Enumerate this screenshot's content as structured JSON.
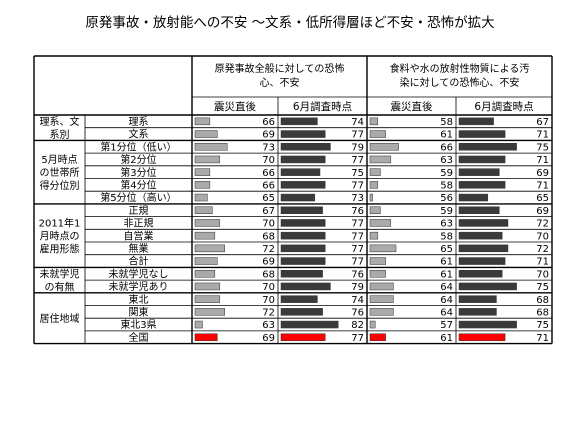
{
  "title": "原発事故・放射能への不安 〜文系・低所得層ほど不安・恐怖が拡大",
  "colors": {
    "bar_direct": "#aaaaaa",
    "bar_june": "#3a3a3a",
    "bar_total": "#ff0000",
    "border": "#000000"
  },
  "chart_data": {
    "type": "bar",
    "orientation": "horizontal",
    "panels": [
      {
        "title_lines": [
          "原発事故全般に対しての恐怖",
          "心、不安"
        ]
      },
      {
        "title_lines": [
          "食料や水の放射性物質による汚",
          "染に対しての恐怖心、不安"
        ]
      }
    ],
    "columns": [
      "震災直後",
      "6月調査時点"
    ],
    "groups": [
      {
        "label_lines": [
          "理系、文",
          "系別"
        ],
        "rows": [
          {
            "label": "理系",
            "values": [
              66,
              74,
              58,
              67
            ]
          },
          {
            "label": "文系",
            "values": [
              69,
              77,
              61,
              71
            ]
          }
        ]
      },
      {
        "label_lines": [
          "5月時点",
          "の世帯所",
          "得分位別"
        ],
        "rows": [
          {
            "label": "第1分位（低い）",
            "values": [
              73,
              79,
              66,
              75
            ]
          },
          {
            "label": "第2分位",
            "values": [
              70,
              77,
              63,
              71
            ]
          },
          {
            "label": "第3分位",
            "values": [
              66,
              75,
              59,
              69
            ]
          },
          {
            "label": "第4分位",
            "values": [
              66,
              77,
              58,
              71
            ]
          },
          {
            "label": "第5分位（高い）",
            "values": [
              65,
              73,
              56,
              65
            ]
          }
        ]
      },
      {
        "label_lines": [
          "2011年1",
          "月時点の",
          "雇用形態"
        ],
        "rows": [
          {
            "label": "正規",
            "values": [
              67,
              76,
              59,
              69
            ]
          },
          {
            "label": "非正規",
            "values": [
              70,
              77,
              63,
              72
            ]
          },
          {
            "label": "自営業",
            "values": [
              68,
              77,
              58,
              70
            ]
          },
          {
            "label": "無業",
            "values": [
              72,
              77,
              65,
              72
            ]
          },
          {
            "label": "合計",
            "values": [
              69,
              77,
              61,
              71
            ]
          }
        ]
      },
      {
        "label_lines": [
          "未就学児",
          "の有無"
        ],
        "rows": [
          {
            "label": "未就学児なし",
            "values": [
              68,
              76,
              61,
              70
            ]
          },
          {
            "label": "未就学児あり",
            "values": [
              70,
              79,
              64,
              75
            ]
          }
        ]
      },
      {
        "label_lines": [
          "居住地域"
        ],
        "rows": [
          {
            "label": "東北",
            "values": [
              70,
              74,
              64,
              68
            ]
          },
          {
            "label": "関東",
            "values": [
              72,
              76,
              64,
              68
            ]
          },
          {
            "label": "東北3県",
            "values": [
              63,
              82,
              57,
              75
            ]
          },
          {
            "label": "全国",
            "values": [
              69,
              77,
              61,
              71
            ],
            "highlight": true
          }
        ]
      }
    ]
  }
}
